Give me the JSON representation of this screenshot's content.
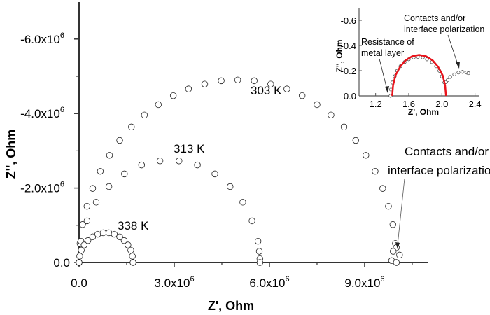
{
  "chart_data": [
    {
      "type": "scatter",
      "xlabel": "Z', Ohm",
      "ylabel": "Z'', Ohm",
      "xlim": [
        0,
        11000000
      ],
      "ylim": [
        0,
        -7000000
      ],
      "y_inverted": true,
      "grid": false,
      "marker": "open-circle",
      "x_ticks": [
        {
          "v": 0,
          "label": "0.0",
          "exp": ""
        },
        {
          "v": 3000000,
          "label": "3.0x10",
          "exp": "6"
        },
        {
          "v": 6000000,
          "label": "6.0x10",
          "exp": "6"
        },
        {
          "v": 9000000,
          "label": "9.0x10",
          "exp": "6"
        }
      ],
      "y_ticks": [
        {
          "v": 0,
          "label": "0.0",
          "exp": ""
        },
        {
          "v": -2000000,
          "label": "-2.0x10",
          "exp": "6"
        },
        {
          "v": -4000000,
          "label": "-4.0x10",
          "exp": "6"
        },
        {
          "v": -6000000,
          "label": "-6.0x10",
          "exp": "6"
        }
      ],
      "annotations": {
        "t303": "303 K",
        "t313": "313 K",
        "t338": "338 K",
        "contacts_line1": "Contacts and/or",
        "contacts_line2": "interface polarization"
      },
      "series": [
        {
          "name": "303 K",
          "points": [
            [
              0,
              0
            ],
            [
              30000.0,
              -510000.0
            ],
            [
              110000.0,
              -1020000.0
            ],
            [
              250000.0,
              -1510000.0
            ],
            [
              430000.0,
              -1990000.0
            ],
            [
              670000.0,
              -2450000.0
            ],
            [
              960000.0,
              -2880000.0
            ],
            [
              1280000.0,
              -3280000.0
            ],
            [
              1650000.0,
              -3640000.0
            ],
            [
              2060000.0,
              -3960000.0
            ],
            [
              2500000.0,
              -4240000.0
            ],
            [
              2970000.0,
              -4480000.0
            ],
            [
              3450000.0,
              -4660000.0
            ],
            [
              3960000.0,
              -4790000.0
            ],
            [
              4480000.0,
              -4880000.0
            ],
            [
              5000000.0,
              -4900000.0
            ],
            [
              5520000.0,
              -4880000.0
            ],
            [
              6040000.0,
              -4790000.0
            ],
            [
              6550000.0,
              -4660000.0
            ],
            [
              7030000.0,
              -4480000.0
            ],
            [
              7500000.0,
              -4240000.0
            ],
            [
              7940000.0,
              -3960000.0
            ],
            [
              8350000.0,
              -3640000.0
            ],
            [
              8720000.0,
              -3280000.0
            ],
            [
              9040000.0,
              -2880000.0
            ],
            [
              9330000.0,
              -2450000.0
            ],
            [
              9570000.0,
              -1990000.0
            ],
            [
              9750000.0,
              -1510000.0
            ],
            [
              9890000.0,
              -1020000.0
            ],
            [
              9970000.0,
              -510000.0
            ],
            [
              10000000.0,
              -400000.0
            ],
            [
              9900000.0,
              -300000.0
            ],
            [
              10100000.0,
              -200000.0
            ],
            [
              9850000.0,
              -50000.0
            ],
            [
              10000000.0,
              0
            ]
          ]
        },
        {
          "name": "313 K",
          "points": [
            [
              0,
              0
            ],
            [
              60000.0,
              -570000.0
            ],
            [
              250000.0,
              -1120000.0
            ],
            [
              540000.0,
              -1620000.0
            ],
            [
              940000.0,
              -2040000.0
            ],
            [
              1430000.0,
              -2380000.0
            ],
            [
              1970000.0,
              -2620000.0
            ],
            [
              2550000.0,
              -2730000.0
            ],
            [
              3150000.0,
              -2730000.0
            ],
            [
              3730000.0,
              -2620000.0
            ],
            [
              4280000.0,
              -2380000.0
            ],
            [
              4760000.0,
              -2040000.0
            ],
            [
              5160000.0,
              -1620000.0
            ],
            [
              5450000.0,
              -1120000.0
            ],
            [
              5640000.0,
              -570000.0
            ],
            [
              5680000.0,
              -300000.0
            ],
            [
              5700000.0,
              -100000.0
            ],
            [
              5700000.0,
              0
            ]
          ]
        },
        {
          "name": "338 K",
          "points": [
            [
              0,
              0
            ],
            [
              20000.0,
              -170000.0
            ],
            [
              70000.0,
              -330000.0
            ],
            [
              160000.0,
              -470000.0
            ],
            [
              280000.0,
              -590000.0
            ],
            [
              430000.0,
              -690000.0
            ],
            [
              590000.0,
              -760000.0
            ],
            [
              760000.0,
              -800000.0
            ],
            [
              940000.0,
              -800000.0
            ],
            [
              1110000.0,
              -760000.0
            ],
            [
              1280000.0,
              -690000.0
            ],
            [
              1420000.0,
              -590000.0
            ],
            [
              1540000.0,
              -470000.0
            ],
            [
              1630000.0,
              -330000.0
            ],
            [
              1680000.0,
              -170000.0
            ],
            [
              1700000.0,
              0
            ]
          ]
        }
      ]
    },
    {
      "type": "scatter",
      "role": "inset",
      "xlabel": "Z', Ohm",
      "ylabel": "Z'', Ohm",
      "xlim": [
        1.0,
        2.45
      ],
      "ylim": [
        0,
        -0.7
      ],
      "y_inverted": true,
      "x_ticks": [
        {
          "v": 1.2,
          "label": "1.2"
        },
        {
          "v": 1.6,
          "label": "1.6"
        },
        {
          "v": 2.0,
          "label": "2.0"
        },
        {
          "v": 2.4,
          "label": "2.4"
        }
      ],
      "y_ticks": [
        {
          "v": 0,
          "label": "0.0"
        },
        {
          "v": -0.2,
          "label": "-0.2"
        },
        {
          "v": -0.4,
          "label": "-0.4"
        },
        {
          "v": -0.6,
          "label": "-0.6"
        }
      ],
      "annotations": {
        "resistance_line1": "Resistance of",
        "resistance_line2": "metal layer",
        "contacts_line1": "Contacts and/or",
        "contacts_line2": "interface polarization"
      },
      "fit_color": "#e8141c",
      "series": [
        {
          "kind": "data",
          "points": [
            [
              1.38,
              0
            ],
            [
              1.385,
              -0.05
            ],
            [
              1.4,
              -0.106
            ],
            [
              1.43,
              -0.155
            ],
            [
              1.46,
              -0.199
            ],
            [
              1.5,
              -0.235
            ],
            [
              1.55,
              -0.268
            ],
            [
              1.6,
              -0.29
            ],
            [
              1.66,
              -0.305
            ],
            [
              1.71,
              -0.31
            ],
            [
              1.77,
              -0.305
            ],
            [
              1.82,
              -0.29
            ],
            [
              1.88,
              -0.268
            ],
            [
              1.93,
              -0.235
            ],
            [
              1.97,
              -0.199
            ],
            [
              2.0,
              -0.155
            ],
            [
              2.03,
              -0.106
            ],
            [
              2.05,
              -0.11
            ],
            [
              2.07,
              -0.125
            ],
            [
              2.1,
              -0.15
            ],
            [
              2.15,
              -0.17
            ],
            [
              2.2,
              -0.185
            ],
            [
              2.25,
              -0.19
            ],
            [
              2.3,
              -0.185
            ],
            [
              2.32,
              -0.18
            ]
          ]
        },
        {
          "kind": "fit",
          "points": [
            [
              1.4,
              0
            ],
            [
              1.411,
              -0.084
            ],
            [
              1.44,
              -0.163
            ],
            [
              1.495,
              -0.23
            ],
            [
              1.56,
              -0.281
            ],
            [
              1.641,
              -0.314
            ],
            [
              1.725,
              -0.325
            ],
            [
              1.809,
              -0.314
            ],
            [
              1.89,
              -0.281
            ],
            [
              1.955,
              -0.23
            ],
            [
              2.01,
              -0.163
            ],
            [
              2.039,
              -0.084
            ],
            [
              2.05,
              0
            ]
          ]
        }
      ]
    }
  ]
}
